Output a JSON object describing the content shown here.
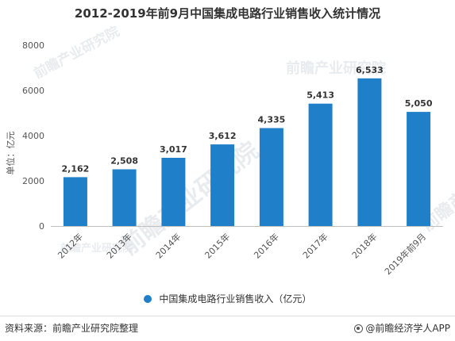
{
  "colors": {
    "bar": "#1f7fc8",
    "axis_text": "#555555",
    "label_text": "#333333",
    "gridline": "#e6e6e6"
  },
  "watermark": {
    "text": "前瞻产业研究院"
  },
  "chart_data": {
    "type": "bar",
    "title": "2012-2019年前9月中国集成电路行业销售收入统计情况",
    "xlabel": "",
    "ylabel": "单位：亿元",
    "ylim": [
      0,
      8000
    ],
    "yticks": [
      0,
      2000,
      4000,
      6000,
      8000
    ],
    "grid": false,
    "categories": [
      "2012年",
      "2013年",
      "2014年",
      "2015年",
      "2016年",
      "2017年",
      "2018年",
      "2019年前9月"
    ],
    "values": [
      2162,
      2508,
      3017,
      3612,
      4335,
      5413,
      6533,
      5050
    ],
    "value_labels": [
      "2,162",
      "2,508",
      "3,017",
      "3,612",
      "4,335",
      "5,413",
      "6,533",
      "5,050"
    ],
    "legend_position": "bottom",
    "series": [
      {
        "name": "中国集成电路行业销售收入（亿元）",
        "values": [
          2162,
          2508,
          3017,
          3612,
          4335,
          5413,
          6533,
          5050
        ]
      }
    ]
  },
  "footer": {
    "source": "资料来源：前瞻产业研究院整理",
    "brand": "@前瞻经济学人APP",
    "brand_icon": "prospective-logo-icon"
  }
}
